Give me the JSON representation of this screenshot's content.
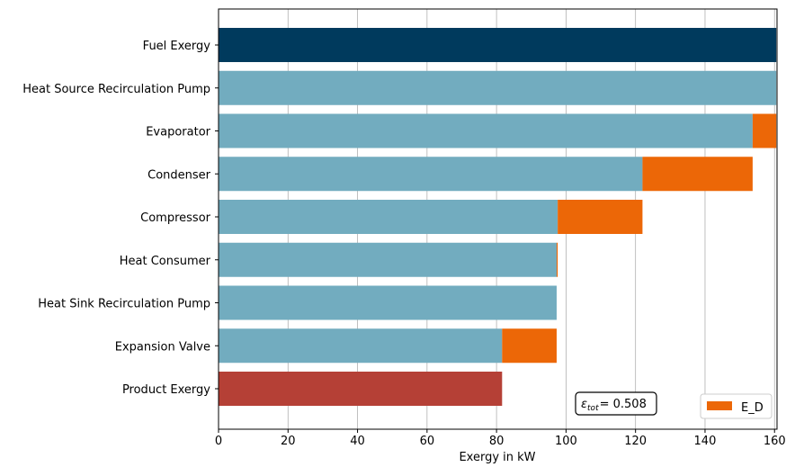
{
  "chart_data": {
    "type": "bar",
    "orientation": "horizontal",
    "stacked": true,
    "categories": [
      "Fuel Exergy",
      "Heat Source Recirculation Pump",
      "Evaporator",
      "Condenser",
      "Compressor",
      "Heat Consumer",
      "Heat Sink Recirculation Pump",
      "Expansion Valve",
      "Product Exergy"
    ],
    "bars": [
      {
        "category": "Fuel Exergy",
        "base": 0,
        "value": 160.5,
        "ed_left": null,
        "ed_value": 0,
        "kind": "fuel"
      },
      {
        "category": "Heat Source Recirculation Pump",
        "base": 0,
        "value": 160.5,
        "ed_left": null,
        "ed_value": 0,
        "kind": "stage"
      },
      {
        "category": "Evaporator",
        "base": 0,
        "value": 153.7,
        "ed_left": 153.7,
        "ed_value": 6.8,
        "kind": "stage"
      },
      {
        "category": "Condenser",
        "base": 0,
        "value": 122.0,
        "ed_left": 122.0,
        "ed_value": 31.7,
        "kind": "stage"
      },
      {
        "category": "Compressor",
        "base": 0,
        "value": 97.6,
        "ed_left": 97.6,
        "ed_value": 24.4,
        "kind": "stage"
      },
      {
        "category": "Heat Consumer",
        "base": 0,
        "value": 97.3,
        "ed_left": 97.3,
        "ed_value": 0.3,
        "kind": "stage"
      },
      {
        "category": "Heat Sink Recirculation Pump",
        "base": 0,
        "value": 97.3,
        "ed_left": null,
        "ed_value": 0,
        "kind": "stage"
      },
      {
        "category": "Expansion Valve",
        "base": 0,
        "value": 81.6,
        "ed_left": 81.6,
        "ed_value": 15.7,
        "kind": "stage"
      },
      {
        "category": "Product Exergy",
        "base": 0,
        "value": 81.6,
        "ed_left": null,
        "ed_value": 0,
        "kind": "product"
      }
    ],
    "xlabel": "Exergy in kW",
    "ylabel": "",
    "title": "",
    "xlim": [
      0,
      161
    ],
    "xticks": [
      0,
      20,
      40,
      60,
      80,
      100,
      120,
      140,
      160
    ],
    "grid": "x",
    "legend": {
      "entries": [
        "E_D"
      ],
      "placement": "lower-right"
    },
    "annotation": {
      "label": "ε",
      "subscript": "tot",
      "value": "= 0.508"
    },
    "colors": {
      "fuel": "#003a5d",
      "stage": "#72acbf",
      "destruction": "#ec6707",
      "product": "#b54036",
      "grid": "#b0b0b0"
    }
  }
}
